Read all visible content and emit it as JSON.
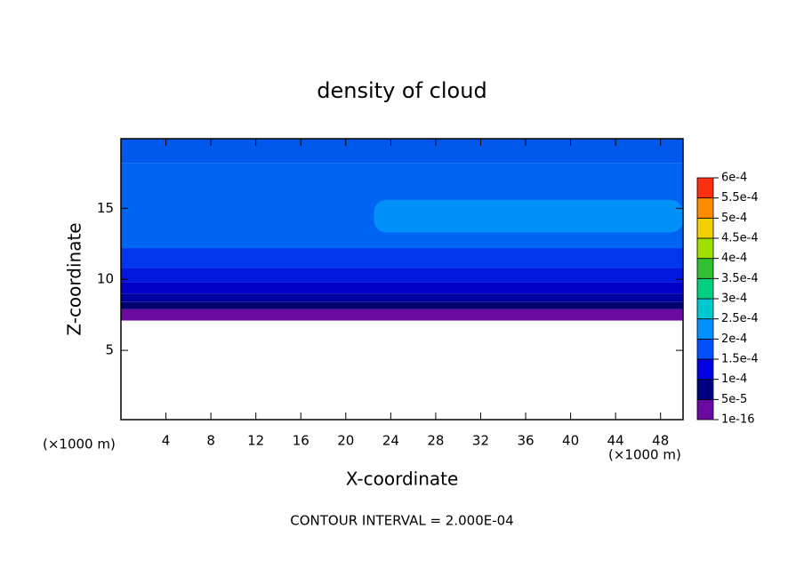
{
  "chart_data": {
    "type": "contour",
    "title": "density of cloud",
    "xlabel": "X-coordinate",
    "ylabel": "Z-coordinate",
    "x_unit_left": "(×1000 m)",
    "x_unit_right": "(×1000 m)",
    "annotation": "CONTOUR INTERVAL = 2.000E-04",
    "xlim": [
      0,
      50
    ],
    "ylim": [
      0,
      19.9
    ],
    "xticks": [
      4,
      8,
      12,
      16,
      20,
      24,
      28,
      32,
      36,
      40,
      44,
      48
    ],
    "yticks": [
      5,
      10,
      15
    ],
    "field": [
      {
        "x0": 0,
        "x1": 50,
        "z0": 7.1,
        "z1": 7.9,
        "color": "#6a0aa0"
      },
      {
        "x0": 0,
        "x1": 50,
        "z0": 7.9,
        "z1": 8.4,
        "color": "#000070"
      },
      {
        "x0": 0,
        "x1": 50,
        "z0": 8.4,
        "z1": 9.0,
        "color": "#0000a0"
      },
      {
        "x0": 0,
        "x1": 50,
        "z0": 9.0,
        "z1": 9.8,
        "color": "#0000c8"
      },
      {
        "x0": 0,
        "x1": 50,
        "z0": 9.8,
        "z1": 10.8,
        "color": "#0018e0"
      },
      {
        "x0": 0,
        "x1": 50,
        "z0": 10.8,
        "z1": 12.2,
        "color": "#0036f0"
      },
      {
        "x0": 0,
        "x1": 50,
        "z0": 12.2,
        "z1": 18.2,
        "color": "#0064f2"
      },
      {
        "x0": 0,
        "x1": 50,
        "z0": 18.2,
        "z1": 19.9,
        "color": "#0058ec"
      },
      {
        "x0": 22.5,
        "x1": 50,
        "z0": 13.3,
        "z1": 15.6,
        "color": "#0090f8"
      }
    ],
    "colorbar": {
      "ticks": [
        {
          "value": 1e-16,
          "label": "1e-16"
        },
        {
          "value": 5e-05,
          "label": "5e-5"
        },
        {
          "value": 0.0001,
          "label": "1e-4"
        },
        {
          "value": 0.00015,
          "label": "1.5e-4"
        },
        {
          "value": 0.0002,
          "label": "2e-4"
        },
        {
          "value": 0.00025,
          "label": "2.5e-4"
        },
        {
          "value": 0.0003,
          "label": "3e-4"
        },
        {
          "value": 0.00035,
          "label": "3.5e-4"
        },
        {
          "value": 0.0004,
          "label": "4e-4"
        },
        {
          "value": 0.00045,
          "label": "4.5e-4"
        },
        {
          "value": 0.0005,
          "label": "5e-4"
        },
        {
          "value": 0.00055,
          "label": "5.5e-4"
        },
        {
          "value": 0.0006,
          "label": "6e-4"
        }
      ],
      "colors": [
        "#6a0aa0",
        "#000080",
        "#0000e0",
        "#0050ff",
        "#0090ff",
        "#00c8d0",
        "#00d080",
        "#30c030",
        "#a0e000",
        "#f0d000",
        "#ff8c00",
        "#ff3010",
        "#f08080"
      ]
    }
  }
}
